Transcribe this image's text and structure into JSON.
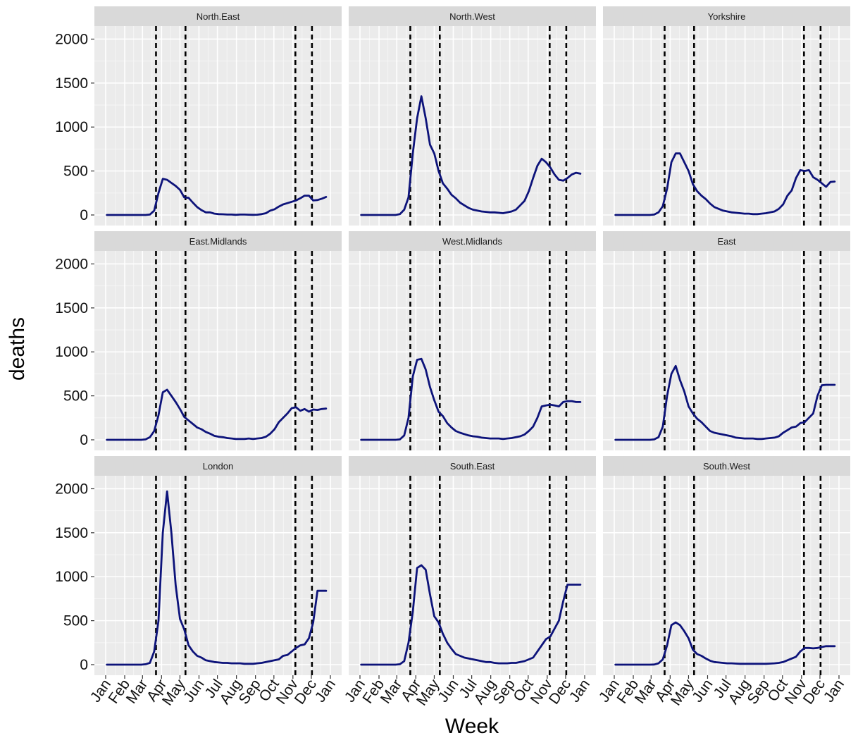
{
  "chart_data": {
    "type": "line",
    "facet_layout": "3x3",
    "xlabel": "Week",
    "ylabel": "deaths",
    "ylim": [
      0,
      2100
    ],
    "y_ticks": [
      0,
      500,
      1000,
      1500,
      2000
    ],
    "x_ticks": [
      "Jan",
      "Feb",
      "Mar",
      "Apr",
      "May",
      "Jun",
      "Jul",
      "Aug",
      "Sep",
      "Oct",
      "Nov",
      "Dec",
      "Jan"
    ],
    "x_range": [
      "2020-01-01",
      "2021-01-01"
    ],
    "vlines": [
      "2020-03-23",
      "2020-05-10",
      "2020-11-05",
      "2020-12-02"
    ],
    "vline_style": "dashed",
    "line_color": "#0d137a",
    "panel_background": "#ebebeb",
    "strip_background": "#d9d9d9",
    "grid": true,
    "panels": [
      {
        "title": "North.East",
        "x": [
          "2020-01-03",
          "2020-01-10",
          "2020-01-17",
          "2020-01-24",
          "2020-01-31",
          "2020-02-07",
          "2020-02-14",
          "2020-02-21",
          "2020-02-28",
          "2020-03-06",
          "2020-03-13",
          "2020-03-20",
          "2020-03-27",
          "2020-04-03",
          "2020-04-10",
          "2020-04-17",
          "2020-04-24",
          "2020-05-01",
          "2020-05-08",
          "2020-05-15",
          "2020-05-22",
          "2020-05-29",
          "2020-06-05",
          "2020-06-12",
          "2020-06-19",
          "2020-06-26",
          "2020-07-03",
          "2020-07-10",
          "2020-07-17",
          "2020-07-24",
          "2020-07-31",
          "2020-08-07",
          "2020-08-14",
          "2020-08-21",
          "2020-08-28",
          "2020-09-04",
          "2020-09-11",
          "2020-09-18",
          "2020-09-25",
          "2020-10-02",
          "2020-10-09",
          "2020-10-16",
          "2020-10-23",
          "2020-10-30",
          "2020-11-06",
          "2020-11-13",
          "2020-11-20",
          "2020-11-27",
          "2020-12-04",
          "2020-12-11",
          "2020-12-18",
          "2020-12-25"
        ],
        "y": [
          0,
          0,
          0,
          0,
          0,
          0,
          0,
          0,
          0,
          0,
          5,
          50,
          250,
          410,
          400,
          365,
          330,
          285,
          200,
          195,
          140,
          90,
          55,
          30,
          30,
          15,
          10,
          8,
          5,
          5,
          2,
          5,
          5,
          3,
          2,
          3,
          10,
          20,
          50,
          65,
          95,
          120,
          135,
          150,
          165,
          190,
          220,
          220,
          165,
          170,
          185,
          205
        ]
      },
      {
        "title": "North.West",
        "x": [
          "2020-01-03",
          "2020-01-10",
          "2020-01-17",
          "2020-01-24",
          "2020-01-31",
          "2020-02-07",
          "2020-02-14",
          "2020-02-21",
          "2020-02-28",
          "2020-03-06",
          "2020-03-13",
          "2020-03-20",
          "2020-03-27",
          "2020-04-03",
          "2020-04-10",
          "2020-04-17",
          "2020-04-24",
          "2020-05-01",
          "2020-05-08",
          "2020-05-15",
          "2020-05-22",
          "2020-05-29",
          "2020-06-05",
          "2020-06-12",
          "2020-06-19",
          "2020-06-26",
          "2020-07-03",
          "2020-07-10",
          "2020-07-17",
          "2020-07-24",
          "2020-07-31",
          "2020-08-07",
          "2020-08-14",
          "2020-08-21",
          "2020-08-28",
          "2020-09-04",
          "2020-09-11",
          "2020-09-18",
          "2020-09-25",
          "2020-10-02",
          "2020-10-09",
          "2020-10-16",
          "2020-10-23",
          "2020-10-30",
          "2020-11-06",
          "2020-11-13",
          "2020-11-20",
          "2020-11-27",
          "2020-12-04",
          "2020-12-11",
          "2020-12-18",
          "2020-12-25"
        ],
        "y": [
          0,
          0,
          0,
          0,
          0,
          0,
          0,
          0,
          0,
          10,
          60,
          200,
          700,
          1100,
          1350,
          1100,
          800,
          700,
          500,
          360,
          300,
          230,
          190,
          140,
          110,
          80,
          60,
          50,
          40,
          35,
          30,
          30,
          25,
          20,
          30,
          40,
          60,
          110,
          160,
          270,
          420,
          560,
          640,
          600,
          540,
          460,
          400,
          390,
          420,
          460,
          480,
          470
        ]
      },
      {
        "title": "Yorkshire",
        "x": [
          "2020-01-03",
          "2020-01-10",
          "2020-01-17",
          "2020-01-24",
          "2020-01-31",
          "2020-02-07",
          "2020-02-14",
          "2020-02-21",
          "2020-02-28",
          "2020-03-06",
          "2020-03-13",
          "2020-03-20",
          "2020-03-27",
          "2020-04-03",
          "2020-04-10",
          "2020-04-17",
          "2020-04-24",
          "2020-05-01",
          "2020-05-08",
          "2020-05-15",
          "2020-05-22",
          "2020-05-29",
          "2020-06-05",
          "2020-06-12",
          "2020-06-19",
          "2020-06-26",
          "2020-07-03",
          "2020-07-10",
          "2020-07-17",
          "2020-07-24",
          "2020-07-31",
          "2020-08-07",
          "2020-08-14",
          "2020-08-21",
          "2020-08-28",
          "2020-09-04",
          "2020-09-11",
          "2020-09-18",
          "2020-09-25",
          "2020-10-02",
          "2020-10-09",
          "2020-10-16",
          "2020-10-23",
          "2020-10-30",
          "2020-11-06",
          "2020-11-13",
          "2020-11-20",
          "2020-11-27",
          "2020-12-04",
          "2020-12-11",
          "2020-12-18",
          "2020-12-25"
        ],
        "y": [
          0,
          0,
          0,
          0,
          0,
          0,
          0,
          0,
          0,
          5,
          30,
          100,
          300,
          600,
          700,
          700,
          600,
          500,
          350,
          270,
          220,
          180,
          130,
          90,
          70,
          50,
          40,
          30,
          25,
          20,
          15,
          15,
          10,
          10,
          15,
          20,
          30,
          40,
          70,
          120,
          220,
          280,
          420,
          510,
          500,
          510,
          430,
          400,
          360,
          320,
          375,
          380
        ]
      },
      {
        "title": "East.Midlands",
        "x": [
          "2020-01-03",
          "2020-01-10",
          "2020-01-17",
          "2020-01-24",
          "2020-01-31",
          "2020-02-07",
          "2020-02-14",
          "2020-02-21",
          "2020-02-28",
          "2020-03-06",
          "2020-03-13",
          "2020-03-20",
          "2020-03-27",
          "2020-04-03",
          "2020-04-10",
          "2020-04-17",
          "2020-04-24",
          "2020-05-01",
          "2020-05-08",
          "2020-05-15",
          "2020-05-22",
          "2020-05-29",
          "2020-06-05",
          "2020-06-12",
          "2020-06-19",
          "2020-06-26",
          "2020-07-03",
          "2020-07-10",
          "2020-07-17",
          "2020-07-24",
          "2020-07-31",
          "2020-08-07",
          "2020-08-14",
          "2020-08-21",
          "2020-08-28",
          "2020-09-04",
          "2020-09-11",
          "2020-09-18",
          "2020-09-25",
          "2020-10-02",
          "2020-10-09",
          "2020-10-16",
          "2020-10-23",
          "2020-10-30",
          "2020-11-06",
          "2020-11-13",
          "2020-11-20",
          "2020-11-27",
          "2020-12-04",
          "2020-12-11",
          "2020-12-18",
          "2020-12-25"
        ],
        "y": [
          0,
          0,
          0,
          0,
          0,
          0,
          0,
          0,
          0,
          5,
          30,
          100,
          280,
          540,
          570,
          500,
          430,
          350,
          260,
          220,
          180,
          140,
          120,
          90,
          70,
          45,
          35,
          30,
          20,
          15,
          10,
          10,
          10,
          15,
          10,
          15,
          20,
          35,
          70,
          120,
          200,
          250,
          300,
          360,
          370,
          330,
          350,
          320,
          345,
          340,
          350,
          355
        ]
      },
      {
        "title": "West.Midlands",
        "x": [
          "2020-01-03",
          "2020-01-10",
          "2020-01-17",
          "2020-01-24",
          "2020-01-31",
          "2020-02-07",
          "2020-02-14",
          "2020-02-21",
          "2020-02-28",
          "2020-03-06",
          "2020-03-13",
          "2020-03-20",
          "2020-03-27",
          "2020-04-03",
          "2020-04-10",
          "2020-04-17",
          "2020-04-24",
          "2020-05-01",
          "2020-05-08",
          "2020-05-15",
          "2020-05-22",
          "2020-05-29",
          "2020-06-05",
          "2020-06-12",
          "2020-06-19",
          "2020-06-26",
          "2020-07-03",
          "2020-07-10",
          "2020-07-17",
          "2020-07-24",
          "2020-07-31",
          "2020-08-07",
          "2020-08-14",
          "2020-08-21",
          "2020-08-28",
          "2020-09-04",
          "2020-09-11",
          "2020-09-18",
          "2020-09-25",
          "2020-10-02",
          "2020-10-09",
          "2020-10-16",
          "2020-10-23",
          "2020-10-30",
          "2020-11-06",
          "2020-11-13",
          "2020-11-20",
          "2020-11-27",
          "2020-12-04",
          "2020-12-11",
          "2020-12-18",
          "2020-12-25"
        ],
        "y": [
          0,
          0,
          0,
          0,
          0,
          0,
          0,
          0,
          0,
          5,
          50,
          250,
          720,
          910,
          920,
          800,
          600,
          450,
          320,
          270,
          190,
          140,
          100,
          80,
          65,
          50,
          40,
          35,
          25,
          20,
          15,
          15,
          15,
          10,
          15,
          20,
          30,
          40,
          60,
          100,
          150,
          250,
          380,
          390,
          400,
          390,
          380,
          430,
          440,
          440,
          430,
          430
        ]
      },
      {
        "title": "East",
        "x": [
          "2020-01-03",
          "2020-01-10",
          "2020-01-17",
          "2020-01-24",
          "2020-01-31",
          "2020-02-07",
          "2020-02-14",
          "2020-02-21",
          "2020-02-28",
          "2020-03-06",
          "2020-03-13",
          "2020-03-20",
          "2020-03-27",
          "2020-04-03",
          "2020-04-10",
          "2020-04-17",
          "2020-04-24",
          "2020-05-01",
          "2020-05-08",
          "2020-05-15",
          "2020-05-22",
          "2020-05-29",
          "2020-06-05",
          "2020-06-12",
          "2020-06-19",
          "2020-06-26",
          "2020-07-03",
          "2020-07-10",
          "2020-07-17",
          "2020-07-24",
          "2020-07-31",
          "2020-08-07",
          "2020-08-14",
          "2020-08-21",
          "2020-08-28",
          "2020-09-04",
          "2020-09-11",
          "2020-09-18",
          "2020-09-25",
          "2020-10-02",
          "2020-10-09",
          "2020-10-16",
          "2020-10-23",
          "2020-10-30",
          "2020-11-06",
          "2020-11-13",
          "2020-11-20",
          "2020-11-27",
          "2020-12-04",
          "2020-12-11",
          "2020-12-18",
          "2020-12-25"
        ],
        "y": [
          0,
          0,
          0,
          0,
          0,
          0,
          0,
          0,
          0,
          5,
          30,
          150,
          500,
          750,
          840,
          680,
          550,
          380,
          300,
          240,
          200,
          150,
          100,
          80,
          70,
          60,
          50,
          40,
          25,
          20,
          15,
          15,
          15,
          10,
          10,
          15,
          20,
          25,
          40,
          80,
          110,
          140,
          150,
          190,
          200,
          250,
          300,
          500,
          620,
          625,
          625,
          625
        ]
      },
      {
        "title": "London",
        "x": [
          "2020-01-03",
          "2020-01-10",
          "2020-01-17",
          "2020-01-24",
          "2020-01-31",
          "2020-02-07",
          "2020-02-14",
          "2020-02-21",
          "2020-02-28",
          "2020-03-06",
          "2020-03-13",
          "2020-03-20",
          "2020-03-27",
          "2020-04-03",
          "2020-04-10",
          "2020-04-17",
          "2020-04-24",
          "2020-05-01",
          "2020-05-08",
          "2020-05-15",
          "2020-05-22",
          "2020-05-29",
          "2020-06-05",
          "2020-06-12",
          "2020-06-19",
          "2020-06-26",
          "2020-07-03",
          "2020-07-10",
          "2020-07-17",
          "2020-07-24",
          "2020-07-31",
          "2020-08-07",
          "2020-08-14",
          "2020-08-21",
          "2020-08-28",
          "2020-09-04",
          "2020-09-11",
          "2020-09-18",
          "2020-09-25",
          "2020-10-02",
          "2020-10-09",
          "2020-10-16",
          "2020-10-23",
          "2020-10-30",
          "2020-11-06",
          "2020-11-13",
          "2020-11-20",
          "2020-11-27",
          "2020-12-04",
          "2020-12-11",
          "2020-12-18",
          "2020-12-25"
        ],
        "y": [
          0,
          0,
          0,
          0,
          0,
          0,
          0,
          0,
          0,
          5,
          20,
          150,
          500,
          1500,
          1970,
          1500,
          900,
          520,
          400,
          220,
          150,
          100,
          80,
          50,
          40,
          30,
          25,
          20,
          20,
          15,
          15,
          15,
          10,
          10,
          10,
          15,
          20,
          30,
          40,
          50,
          60,
          100,
          110,
          150,
          190,
          220,
          230,
          300,
          480,
          840,
          840,
          840
        ]
      },
      {
        "title": "South.East",
        "x": [
          "2020-01-03",
          "2020-01-10",
          "2020-01-17",
          "2020-01-24",
          "2020-01-31",
          "2020-02-07",
          "2020-02-14",
          "2020-02-21",
          "2020-02-28",
          "2020-03-06",
          "2020-03-13",
          "2020-03-20",
          "2020-03-27",
          "2020-04-03",
          "2020-04-10",
          "2020-04-17",
          "2020-04-24",
          "2020-05-01",
          "2020-05-08",
          "2020-05-15",
          "2020-05-22",
          "2020-05-29",
          "2020-06-05",
          "2020-06-12",
          "2020-06-19",
          "2020-06-26",
          "2020-07-03",
          "2020-07-10",
          "2020-07-17",
          "2020-07-24",
          "2020-07-31",
          "2020-08-07",
          "2020-08-14",
          "2020-08-21",
          "2020-08-28",
          "2020-09-04",
          "2020-09-11",
          "2020-09-18",
          "2020-09-25",
          "2020-10-02",
          "2020-10-09",
          "2020-10-16",
          "2020-10-23",
          "2020-10-30",
          "2020-11-06",
          "2020-11-13",
          "2020-11-20",
          "2020-11-27",
          "2020-12-04",
          "2020-12-11",
          "2020-12-18",
          "2020-12-25"
        ],
        "y": [
          0,
          0,
          0,
          0,
          0,
          0,
          0,
          0,
          0,
          5,
          40,
          250,
          600,
          1100,
          1130,
          1080,
          800,
          550,
          480,
          350,
          250,
          180,
          120,
          100,
          80,
          70,
          60,
          50,
          40,
          30,
          30,
          20,
          15,
          15,
          15,
          20,
          20,
          30,
          40,
          60,
          80,
          150,
          220,
          290,
          320,
          410,
          500,
          720,
          910,
          910,
          910,
          910
        ]
      },
      {
        "title": "South.West",
        "x": [
          "2020-01-03",
          "2020-01-10",
          "2020-01-17",
          "2020-01-24",
          "2020-01-31",
          "2020-02-07",
          "2020-02-14",
          "2020-02-21",
          "2020-02-28",
          "2020-03-06",
          "2020-03-13",
          "2020-03-20",
          "2020-03-27",
          "2020-04-03",
          "2020-04-10",
          "2020-04-17",
          "2020-04-24",
          "2020-05-01",
          "2020-05-08",
          "2020-05-15",
          "2020-05-22",
          "2020-05-29",
          "2020-06-05",
          "2020-06-12",
          "2020-06-19",
          "2020-06-26",
          "2020-07-03",
          "2020-07-10",
          "2020-07-17",
          "2020-07-24",
          "2020-07-31",
          "2020-08-07",
          "2020-08-14",
          "2020-08-21",
          "2020-08-28",
          "2020-09-04",
          "2020-09-11",
          "2020-09-18",
          "2020-09-25",
          "2020-10-02",
          "2020-10-09",
          "2020-10-16",
          "2020-10-23",
          "2020-10-30",
          "2020-11-06",
          "2020-11-13",
          "2020-11-20",
          "2020-11-27",
          "2020-12-04",
          "2020-12-11",
          "2020-12-18",
          "2020-12-25"
        ],
        "y": [
          0,
          0,
          0,
          0,
          0,
          0,
          0,
          0,
          0,
          2,
          15,
          60,
          220,
          450,
          480,
          450,
          380,
          300,
          170,
          120,
          100,
          70,
          45,
          30,
          25,
          20,
          15,
          15,
          12,
          10,
          10,
          10,
          10,
          10,
          10,
          10,
          12,
          15,
          20,
          30,
          50,
          70,
          90,
          150,
          190,
          190,
          185,
          190,
          200,
          210,
          210,
          210
        ]
      }
    ]
  }
}
